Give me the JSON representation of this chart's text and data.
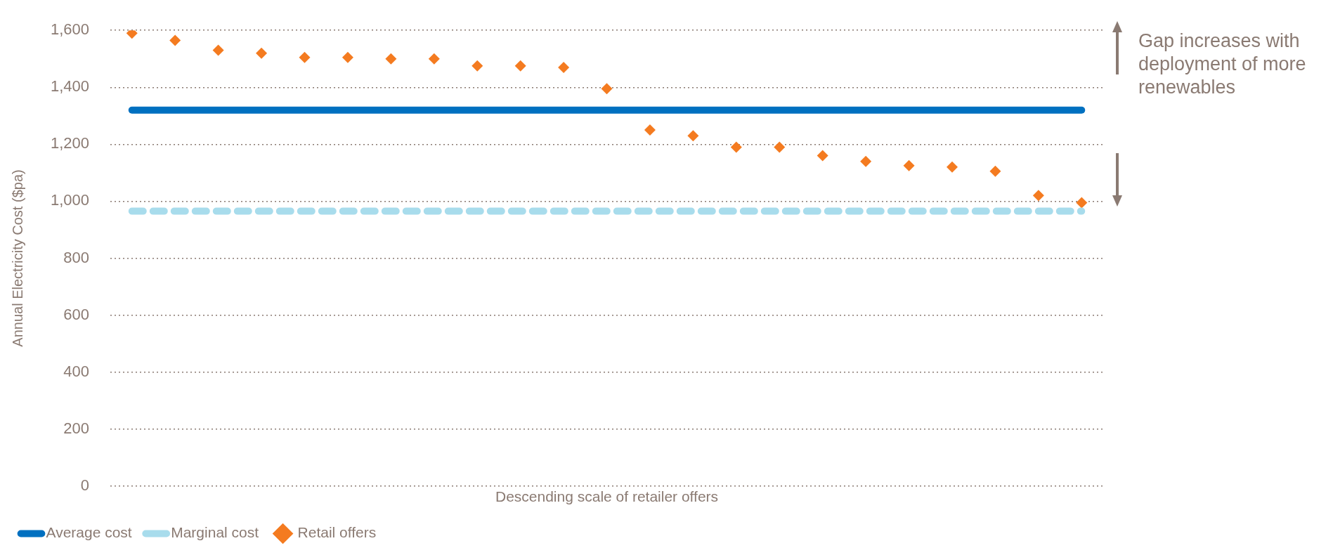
{
  "chart_data": {
    "type": "line",
    "xlabel": "Descending scale of retailer offers",
    "ylabel": "Annual Electricity Cost ($pa)",
    "categories": [
      null,
      null,
      null,
      null,
      null,
      null,
      null,
      null,
      null,
      null,
      null,
      null,
      null,
      null,
      null,
      null,
      null,
      null,
      null,
      null,
      null,
      null,
      null
    ],
    "series": [
      {
        "name": "Average cost",
        "type": "line",
        "color": "#0070c0",
        "line_style": "solid",
        "marker": "none",
        "values": [
          1320,
          1320,
          1320,
          1320,
          1320,
          1320,
          1320,
          1320,
          1320,
          1320,
          1320,
          1320,
          1320,
          1320,
          1320,
          1320,
          1320,
          1320,
          1320,
          1320,
          1320,
          1320,
          1320
        ]
      },
      {
        "name": "Marginal cost",
        "type": "line",
        "color": "#a8dcec",
        "line_style": "dashed",
        "marker": "none",
        "values": [
          965,
          965,
          965,
          965,
          965,
          965,
          965,
          965,
          965,
          965,
          965,
          965,
          965,
          965,
          965,
          965,
          965,
          965,
          965,
          965,
          965,
          965,
          965
        ]
      },
      {
        "name": "Retail offers",
        "type": "scatter",
        "color": "#f47b20",
        "marker": "diamond",
        "values": [
          1590,
          1565,
          1530,
          1520,
          1505,
          1505,
          1500,
          1500,
          1475,
          1475,
          1470,
          1395,
          1250,
          1230,
          1190,
          1190,
          1160,
          1140,
          1125,
          1120,
          1105,
          1020,
          995
        ]
      }
    ],
    "ylim": [
      0,
      1600
    ],
    "yticks": [
      {
        "value": 0,
        "label": "0"
      },
      {
        "value": 200,
        "label": "200"
      },
      {
        "value": 400,
        "label": "400"
      },
      {
        "value": 600,
        "label": "600"
      },
      {
        "value": 800,
        "label": "800"
      },
      {
        "value": 1000,
        "label": "1,000"
      },
      {
        "value": 1200,
        "label": "1,200"
      },
      {
        "value": 1400,
        "label": "1,400"
      },
      {
        "value": 1600,
        "label": "1,600"
      }
    ],
    "grid": "y",
    "legend": "bottom left",
    "tick_labels": "y",
    "annotations": [
      "Gap increases with deployment of more renewables"
    ]
  }
}
